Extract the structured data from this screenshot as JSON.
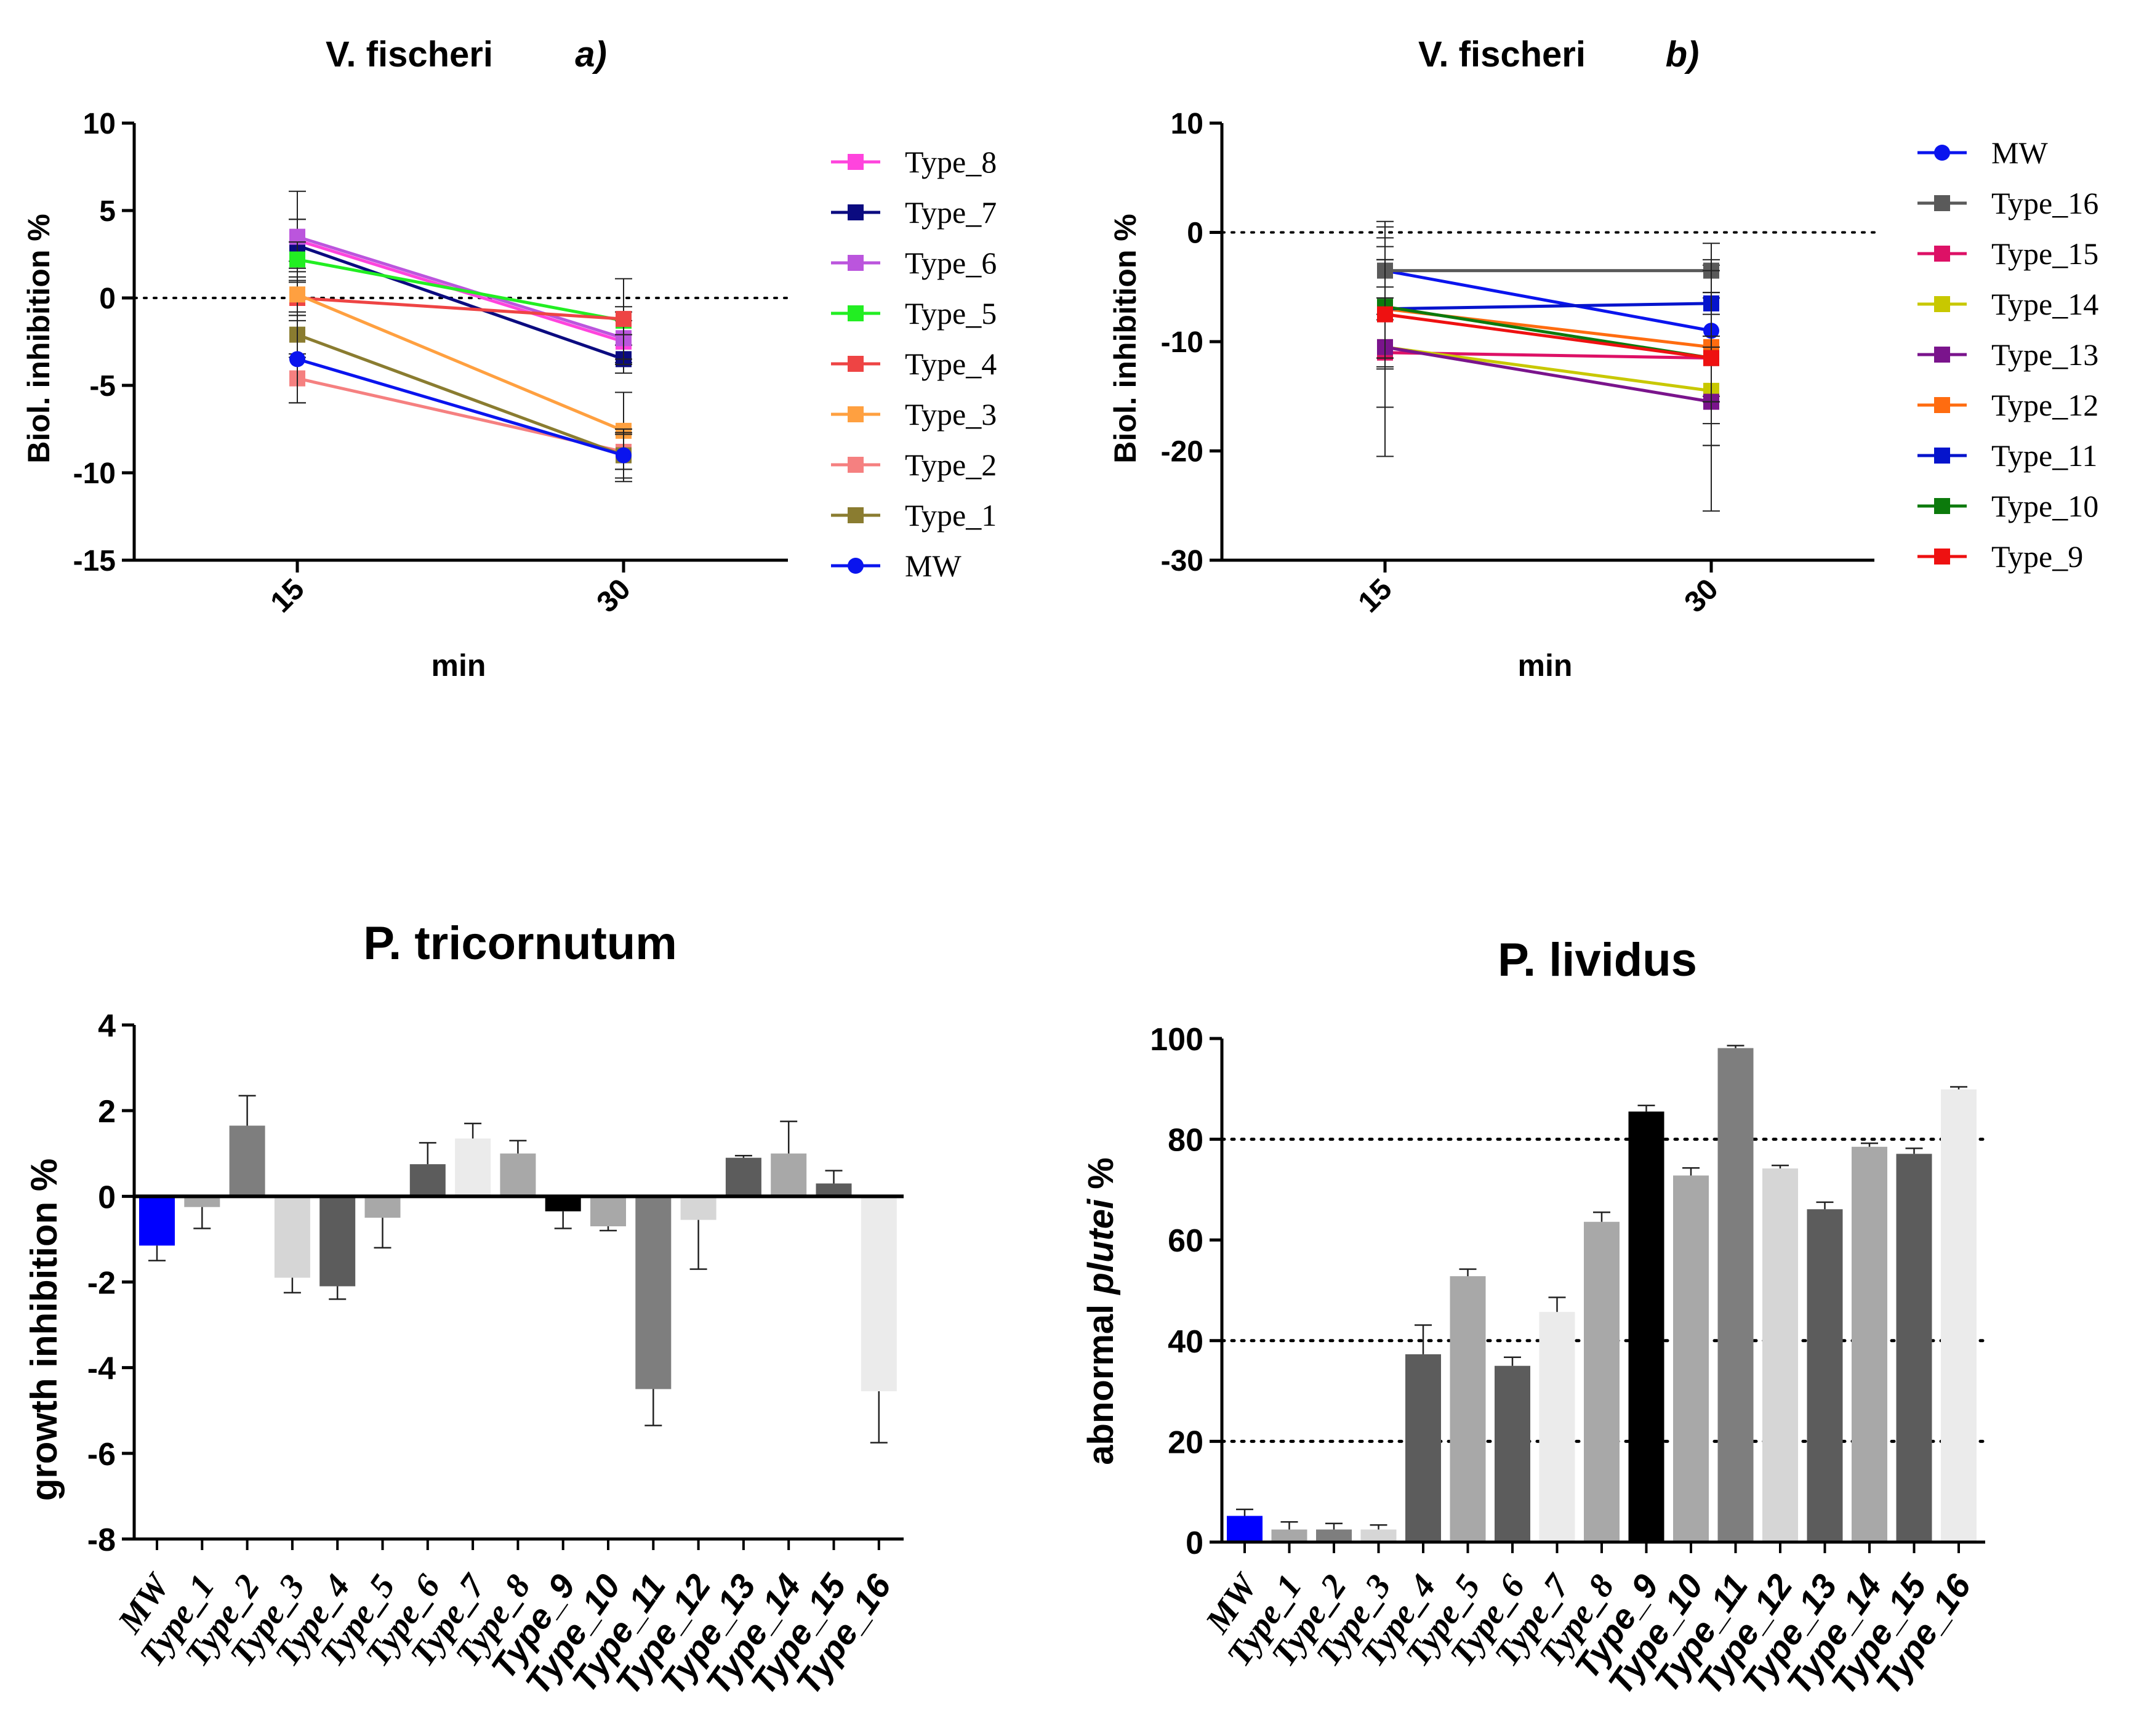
{
  "chart_data": [
    {
      "type": "line",
      "panel": "a",
      "title": "V. fischeri",
      "panel_label": "a)",
      "xlabel": "min",
      "ylabel": "Biol. inhibition %",
      "x": [
        "15",
        "30"
      ],
      "ylim": [
        -15,
        10
      ],
      "yticks": [
        "10",
        "5",
        "0",
        "-5",
        "-10",
        "-15"
      ],
      "yticks_values": [
        10,
        5,
        0,
        -5,
        -10,
        -15
      ],
      "reference_line": 0,
      "legend_position": "right",
      "series": [
        {
          "name": "Type_8",
          "color": "#ff44dd",
          "marker": "square",
          "values": [
            3.3,
            -2.5
          ],
          "errors": [
            1.2,
            1.2
          ]
        },
        {
          "name": "Type_7",
          "color": "#0b0b80",
          "marker": "square",
          "values": [
            3.0,
            -3.5
          ],
          "errors": [
            1.5,
            0.8
          ]
        },
        {
          "name": "Type_6",
          "color": "#bb55dd",
          "marker": "square",
          "values": [
            3.5,
            -2.3
          ],
          "errors": [
            2.6,
            1.5
          ]
        },
        {
          "name": "Type_5",
          "color": "#22ee22",
          "marker": "square",
          "values": [
            2.2,
            -1.3
          ],
          "errors": [
            1.0,
            0.8
          ]
        },
        {
          "name": "Type_4",
          "color": "#ee4444",
          "marker": "square",
          "values": [
            0.0,
            -1.2
          ],
          "errors": [
            1.0,
            2.3
          ]
        },
        {
          "name": "Type_3",
          "color": "#ffa040",
          "marker": "square",
          "values": [
            0.2,
            -7.6
          ],
          "errors": [
            1.5,
            2.2
          ]
        },
        {
          "name": "Type_2",
          "color": "#f58080",
          "marker": "square",
          "values": [
            -4.6,
            -8.8
          ],
          "errors": [
            1.4,
            1.0
          ]
        },
        {
          "name": "Type_1",
          "color": "#8a7c30",
          "marker": "square",
          "values": [
            -2.1,
            -9.0
          ],
          "errors": [
            1.3,
            1.3
          ]
        },
        {
          "name": "MW",
          "color": "#0a14ee",
          "marker": "circle",
          "values": [
            -3.5,
            -9.0
          ],
          "errors": [
            2.5,
            1.5
          ]
        }
      ]
    },
    {
      "type": "line",
      "panel": "b",
      "title": "V. fischeri",
      "panel_label": "b)",
      "xlabel": "min",
      "ylabel": "Biol. inhibition %",
      "x": [
        "15",
        "30"
      ],
      "ylim": [
        -30,
        10
      ],
      "yticks": [
        "10",
        "0",
        "-10",
        "-20",
        "-30"
      ],
      "yticks_values": [
        10,
        0,
        -10,
        -20,
        -30
      ],
      "reference_line": 0,
      "legend_position": "right",
      "series": [
        {
          "name": "MW",
          "color": "#0a14ee",
          "marker": "circle",
          "values": [
            -3.5,
            -9.0
          ],
          "errors": [
            4.5,
            6.0
          ]
        },
        {
          "name": "Type_16",
          "color": "#5a5a5a",
          "marker": "square",
          "values": [
            -3.5,
            -3.5
          ],
          "errors": [
            4.0,
            2.5
          ]
        },
        {
          "name": "Type_15",
          "color": "#dd1166",
          "marker": "square",
          "values": [
            -11.0,
            -11.5
          ],
          "errors": [
            5.0,
            8.0
          ]
        },
        {
          "name": "Type_14",
          "color": "#c8c800",
          "marker": "square",
          "values": [
            -10.5,
            -14.5
          ],
          "errors": [
            5.5,
            5.0
          ]
        },
        {
          "name": "Type_13",
          "color": "#7a148c",
          "marker": "square",
          "values": [
            -10.5,
            -15.5
          ],
          "errors": [
            10.0,
            10.0
          ]
        },
        {
          "name": "Type_12",
          "color": "#ff6c10",
          "marker": "square",
          "values": [
            -7.0,
            -10.5
          ],
          "errors": [
            4.5,
            5.0
          ]
        },
        {
          "name": "Type_11",
          "color": "#0514cc",
          "marker": "square",
          "values": [
            -7.0,
            -6.5
          ],
          "errors": [
            4.5,
            4.0
          ]
        },
        {
          "name": "Type_10",
          "color": "#0c7a0c",
          "marker": "square",
          "values": [
            -6.8,
            -11.5
          ],
          "errors": [
            5.5,
            6.0
          ]
        },
        {
          "name": "Type_9",
          "color": "#ee1111",
          "marker": "square",
          "values": [
            -7.5,
            -11.5
          ],
          "errors": [
            5.0,
            4.0
          ]
        }
      ]
    },
    {
      "type": "bar",
      "title": "P. tricornutum",
      "xlabel": "",
      "ylabel": "growth inhibition %",
      "ylim": [
        -8,
        4
      ],
      "yticks": [
        "4",
        "2",
        "0",
        "-2",
        "-4",
        "-6",
        "-8"
      ],
      "yticks_values": [
        4,
        2,
        0,
        -2,
        -4,
        -6,
        -8
      ],
      "categories": [
        "MW",
        "Type_1",
        "Type_2",
        "Type_3",
        "Type_4",
        "Type_5",
        "Type_6",
        "Type_7",
        "Type_8",
        "Type_9",
        "Type_10",
        "Type_11",
        "Type_12",
        "Type_13",
        "Type_14",
        "Type_15",
        "Type_16"
      ],
      "values": [
        -1.15,
        -0.25,
        1.65,
        -1.9,
        -2.1,
        -0.5,
        0.75,
        1.35,
        1.0,
        -0.35,
        -0.7,
        -4.5,
        -0.55,
        0.9,
        1.0,
        0.3,
        -4.55
      ],
      "errors": [
        0.35,
        0.5,
        0.7,
        0.35,
        0.3,
        0.7,
        0.5,
        0.35,
        0.3,
        0.4,
        0.1,
        0.85,
        1.15,
        0.05,
        0.75,
        0.3,
        1.2
      ],
      "colors": [
        "#0000ff",
        "#a8a8a8",
        "#7e7e7e",
        "#d6d6d6",
        "#5c5c5c",
        "#a8a8a8",
        "#5c5c5c",
        "#ebebeb",
        "#a8a8a8",
        "#000000",
        "#a8a8a8",
        "#7e7e7e",
        "#d6d6d6",
        "#5c5c5c",
        "#a8a8a8",
        "#5c5c5c",
        "#ebebeb"
      ]
    },
    {
      "type": "bar",
      "title": "P. lividus",
      "xlabel": "",
      "ylabel_prefix": "abnormal ",
      "ylabel_italic": "plutei",
      "ylabel_suffix": " %",
      "ylim": [
        0,
        100
      ],
      "yticks": [
        "100",
        "80",
        "60",
        "40",
        "20",
        "0"
      ],
      "yticks_values": [
        100,
        80,
        60,
        40,
        20,
        0
      ],
      "reference_lines": [
        80,
        40,
        20
      ],
      "categories": [
        "MW",
        "Type_1",
        "Type_2",
        "Type_3",
        "Type_4",
        "Type_5",
        "Type_6",
        "Type_7",
        "Type_8",
        "Type_9",
        "Type_10",
        "Type_11",
        "Type_12",
        "Type_13",
        "Type_14",
        "Type_15",
        "Type_16"
      ],
      "values": [
        5.2,
        2.5,
        2.5,
        2.5,
        37.3,
        52.8,
        35.0,
        45.7,
        63.6,
        85.5,
        72.8,
        98.1,
        74.2,
        66.1,
        78.5,
        77.1,
        89.9
      ],
      "errors": [
        1.3,
        1.5,
        1.2,
        0.9,
        5.8,
        1.4,
        1.7,
        2.9,
        1.9,
        1.2,
        1.5,
        0.5,
        0.6,
        1.4,
        0.7,
        1.1,
        0.5
      ],
      "colors": [
        "#0000ff",
        "#a8a8a8",
        "#7e7e7e",
        "#d6d6d6",
        "#5c5c5c",
        "#a8a8a8",
        "#5c5c5c",
        "#ebebeb",
        "#a8a8a8",
        "#000000",
        "#a8a8a8",
        "#7e7e7e",
        "#d6d6d6",
        "#5c5c5c",
        "#a8a8a8",
        "#5c5c5c",
        "#ebebeb"
      ]
    }
  ]
}
